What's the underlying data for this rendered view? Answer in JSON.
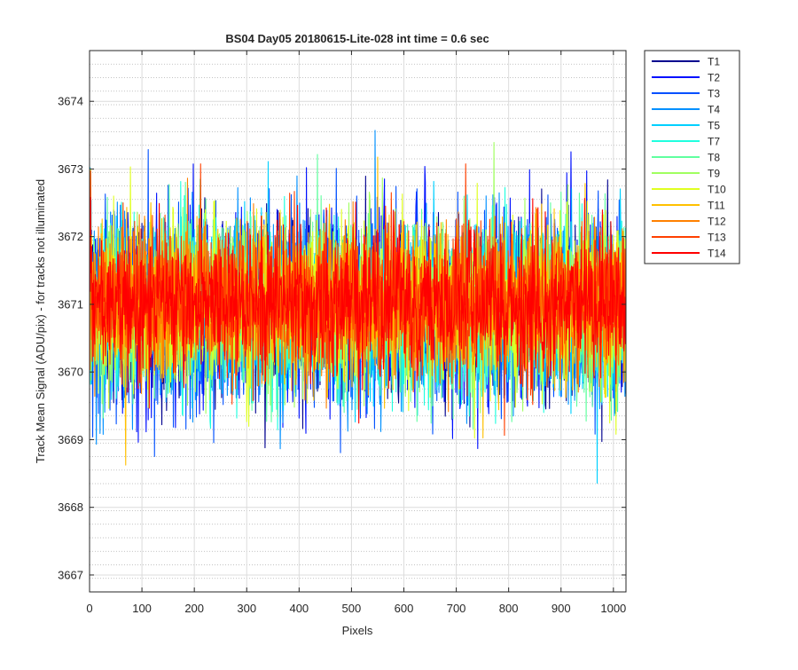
{
  "chart_data": {
    "type": "line",
    "title": "BS04 Day05 20180615-Lite-028 int time = 0.6 sec",
    "xlabel": "Pixels",
    "ylabel": "Track Mean Signal (ADU/pix) - for tracks not illuminated",
    "xlim": [
      0,
      1024
    ],
    "ylim": [
      3666.75,
      3674.75
    ],
    "xticks": [
      0,
      100,
      200,
      300,
      400,
      500,
      600,
      700,
      800,
      900,
      1000
    ],
    "yticks": [
      3667,
      3668,
      3669,
      3670,
      3671,
      3672,
      3673,
      3674
    ],
    "y_minor_step": 0.2,
    "grid": true,
    "legend_position": "outside-top-right",
    "x_count": 1024,
    "series": [
      {
        "name": "T1",
        "color": "#00008f",
        "mean": 3670.9,
        "spread": 0.95
      },
      {
        "name": "T2",
        "color": "#0010ff",
        "mean": 3670.9,
        "spread": 0.95
      },
      {
        "name": "T3",
        "color": "#0050ff",
        "mean": 3670.9,
        "spread": 0.92
      },
      {
        "name": "T4",
        "color": "#0090ff",
        "mean": 3670.9,
        "spread": 0.9
      },
      {
        "name": "T5",
        "color": "#00d0ff",
        "mean": 3670.95,
        "spread": 0.9
      },
      {
        "name": "T7",
        "color": "#20ffdf",
        "mean": 3670.95,
        "spread": 0.88
      },
      {
        "name": "T8",
        "color": "#60ff9f",
        "mean": 3670.95,
        "spread": 0.85
      },
      {
        "name": "T9",
        "color": "#a0ff60",
        "mean": 3671.0,
        "spread": 0.82
      },
      {
        "name": "T10",
        "color": "#e0ff20",
        "mean": 3671.0,
        "spread": 0.8
      },
      {
        "name": "T11",
        "color": "#ffc000",
        "mean": 3671.0,
        "spread": 0.78
      },
      {
        "name": "T12",
        "color": "#ff8000",
        "mean": 3671.0,
        "spread": 0.75
      },
      {
        "name": "T13",
        "color": "#ff4000",
        "mean": 3671.05,
        "spread": 0.72
      },
      {
        "name": "T14",
        "color": "#ff0000",
        "mean": 3671.05,
        "spread": 0.7
      }
    ]
  }
}
